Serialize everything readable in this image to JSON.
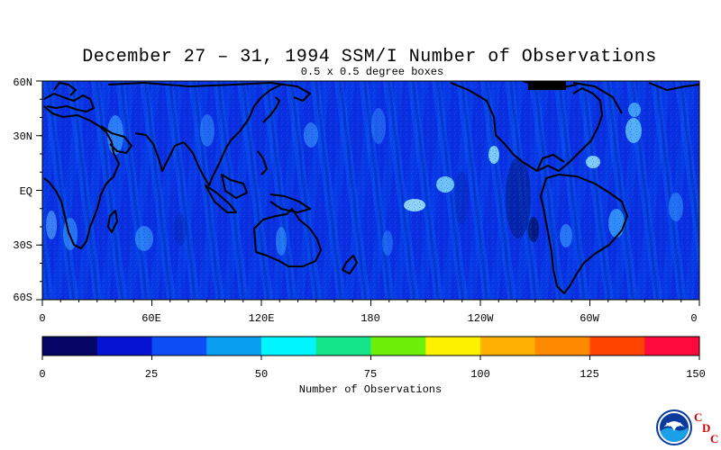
{
  "title": "December 27 – 31, 1994 SSM/I Number of Observations",
  "subtitle": "0.5 x 0.5 degree boxes",
  "lat_labels": [
    "60N",
    "30N",
    "EQ",
    "30S",
    "60S"
  ],
  "lon_labels": [
    "0",
    "60E",
    "120E",
    "180",
    "120W",
    "60W",
    "0"
  ],
  "colorbar": {
    "title": "Number of Observations",
    "tick_labels": [
      "0",
      "25",
      "50",
      "75",
      "100",
      "125",
      "150"
    ],
    "colors": [
      "#050565",
      "#0614d2",
      "#0b4ef6",
      "#0a9ef0",
      "#00f6ff",
      "#14e48a",
      "#6cf00a",
      "#fff200",
      "#ffb000",
      "#ff8a00",
      "#ff4400",
      "#ff0a3a"
    ]
  },
  "logo": {
    "badge_text": "NOAA",
    "letters": [
      "C",
      "D",
      "C"
    ]
  },
  "chart_data": {
    "type": "heatmap",
    "title": "December 27 – 31, 1994 SSM/I Number of Observations",
    "subtitle": "0.5 x 0.5 degree boxes",
    "x_range": [
      0,
      360
    ],
    "y_range": [
      -60,
      60
    ],
    "x_tick_labels": [
      "0",
      "60E",
      "120E",
      "180",
      "120W",
      "60W",
      "0"
    ],
    "y_tick_labels": [
      "60N",
      "30N",
      "EQ",
      "30S",
      "60S"
    ],
    "colorbar_range": [
      0,
      150
    ],
    "colorbar_step": 12.5,
    "colorbar_label": "Number of Observations"
  }
}
